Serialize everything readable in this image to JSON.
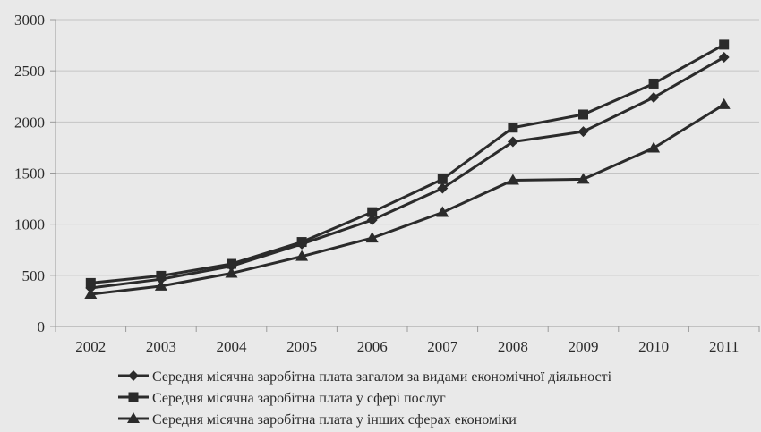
{
  "chart_data": {
    "type": "line",
    "categories": [
      "2002",
      "2003",
      "2004",
      "2005",
      "2006",
      "2007",
      "2008",
      "2009",
      "2010",
      "2011"
    ],
    "ylim": [
      0,
      3000
    ],
    "yticks": [
      "0",
      "500",
      "1000",
      "1500",
      "2000",
      "2500",
      "3000"
    ],
    "grid": "horizontal",
    "legend_position": "bottom",
    "series": [
      {
        "name": "Середня місячна заробітна плата загалом за видами економічної діяльності",
        "marker": "diamond",
        "values": [
          376,
          462,
          590,
          806,
          1041,
          1351,
          1806,
          1906,
          2239,
          2633
        ]
      },
      {
        "name": "Середня місячна заробітна плата у сфері послуг",
        "marker": "square",
        "values": [
          425,
          495,
          612,
          826,
          1118,
          1440,
          1944,
          2073,
          2375,
          2756
        ]
      },
      {
        "name": "Середня місячна заробітна плата у інших сферах економіки",
        "marker": "triangle",
        "values": [
          315,
          395,
          520,
          685,
          865,
          1115,
          1430,
          1440,
          1745,
          2170
        ]
      }
    ]
  }
}
